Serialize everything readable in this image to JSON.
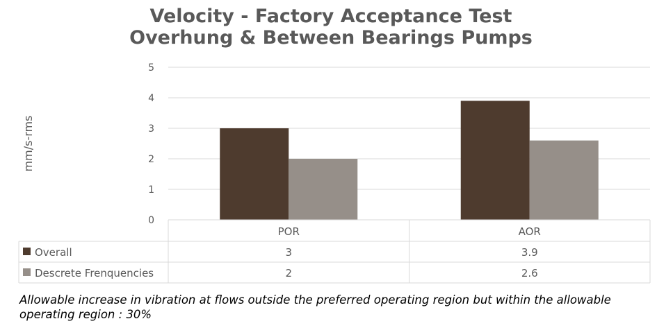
{
  "chart_data": {
    "type": "bar",
    "title": "Velocity - Factory Acceptance Test",
    "subtitle": "Overhung & Between Bearings Pumps",
    "xlabel": "",
    "ylabel": "mm/s-rms",
    "ylim": [
      0,
      5
    ],
    "yticks": [
      "0",
      "1",
      "2",
      "3",
      "4",
      "5"
    ],
    "grid": true,
    "legend": "data-table",
    "categories": [
      "POR",
      "AOR"
    ],
    "series": [
      {
        "name": "Overall",
        "values": [
          3,
          3.9
        ],
        "labels": [
          "3",
          "3.9"
        ],
        "color": "#4e3b2e"
      },
      {
        "name": "Descrete Frenquencies",
        "values": [
          2,
          2.6
        ],
        "labels": [
          "2",
          "2.6"
        ],
        "color": "#968f89"
      }
    ]
  },
  "footnote": "Allowable increase in vibration at flows outside the preferred operating region but within the allowable operating region : 30%"
}
